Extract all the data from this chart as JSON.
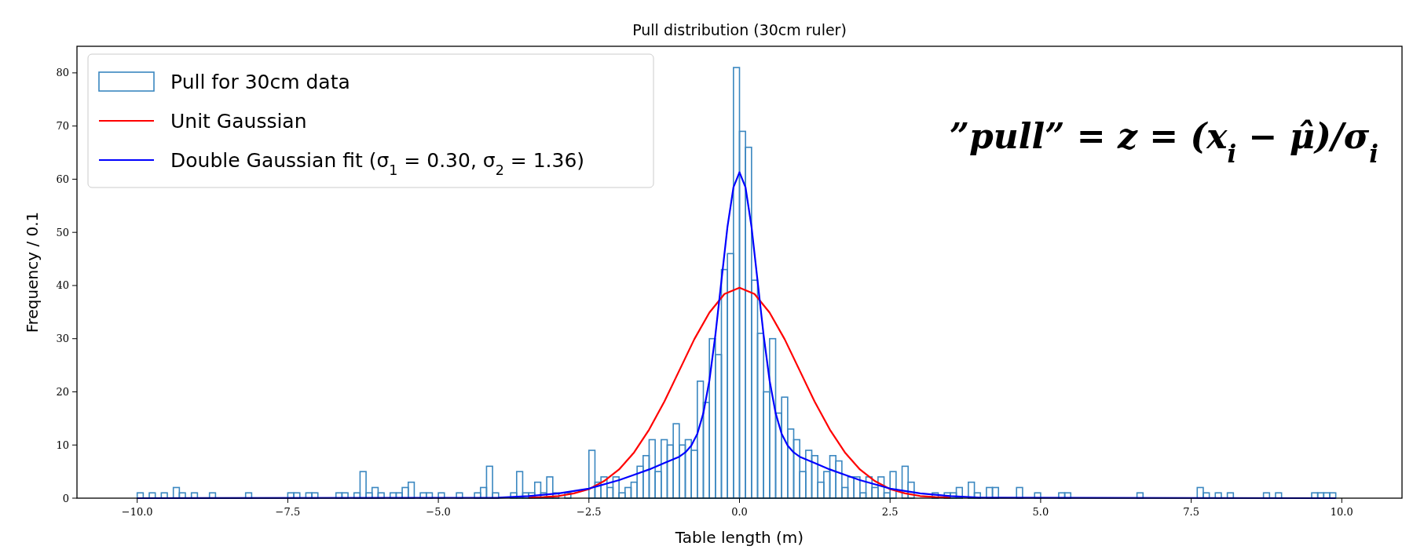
{
  "chart_data": {
    "type": "histogram",
    "title": "Pull distribution (30cm ruler)",
    "xlabel": "Table length (m)",
    "ylabel": "Frequency / 0.1",
    "annotations": [
      "”pull” = z = (x$_{i}$ − μ̂)/σ$_{i}$"
    ],
    "bins": [
      -10,
      -9.9,
      -9.8,
      -9.7,
      -9.6,
      -9.5,
      -9.4,
      -9.3,
      -9.2,
      -9.1,
      -9,
      -8.9,
      -8.8,
      -8.7,
      -8.6,
      -8.5,
      -8.4,
      -8.3,
      -8.2,
      -8.1,
      -8,
      -7.9,
      -7.8,
      -7.7,
      -7.6,
      -7.5,
      -7.4,
      -7.3,
      -7.2,
      -7.1,
      -7,
      -6.9,
      -6.8,
      -6.7,
      -6.6,
      -6.5,
      -6.4,
      -6.3,
      -6.2,
      -6.1,
      -6,
      -5.9,
      -5.8,
      -5.7,
      -5.6,
      -5.5,
      -5.4,
      -5.3,
      -5.2,
      -5.1,
      -5,
      -4.9,
      -4.8,
      -4.7,
      -4.6,
      -4.5,
      -4.4,
      -4.3,
      -4.2,
      -4.1,
      -4,
      -3.9,
      -3.8,
      -3.7,
      -3.6,
      -3.5,
      -3.4,
      -3.3,
      -3.2,
      -3.1,
      -3,
      -2.9,
      -2.8,
      -2.7,
      -2.6,
      -2.5,
      -2.4,
      -2.3,
      -2.2,
      -2.1,
      -2,
      -1.9,
      -1.8,
      -1.7,
      -1.6,
      -1.5,
      -1.4,
      -1.3,
      -1.2,
      -1.1,
      -1,
      -0.9,
      -0.8,
      -0.7,
      -0.6,
      -0.5,
      -0.4,
      -0.3,
      -0.2,
      -0.1,
      0,
      0.1,
      0.2,
      0.3,
      0.4,
      0.5,
      0.6,
      0.7,
      0.8,
      0.9,
      1,
      1.1,
      1.2,
      1.3,
      1.4,
      1.5,
      1.6,
      1.7,
      1.8,
      1.9,
      2,
      2.1,
      2.2,
      2.3,
      2.4,
      2.5,
      2.6,
      2.7,
      2.8,
      2.9,
      3,
      3.1,
      3.2,
      3.3,
      3.4,
      3.5,
      3.6,
      3.7,
      3.8,
      3.9,
      4,
      4.1,
      4.2,
      4.3,
      4.4,
      4.5,
      4.6,
      4.7,
      4.8,
      4.9,
      5,
      5.1,
      5.2,
      5.3,
      5.4,
      5.5,
      5.6,
      5.7,
      5.8,
      5.9,
      6,
      6.1,
      6.2,
      6.3,
      6.4,
      6.5,
      6.6,
      6.7,
      6.8,
      6.9,
      7,
      7.1,
      7.2,
      7.3,
      7.4,
      7.5,
      7.6,
      7.7,
      7.8,
      7.9,
      8,
      8.1,
      8.2,
      8.3,
      8.4,
      8.5,
      8.6,
      8.7,
      8.8,
      8.9,
      9,
      9.1,
      9.2,
      9.3,
      9.4,
      9.5,
      9.6,
      9.7,
      9.8,
      9.9,
      10
    ],
    "series": [
      {
        "name": "Pull for 30cm data",
        "color": "#3a87c0",
        "values": [
          1,
          0,
          1,
          0,
          1,
          0,
          2,
          1,
          0,
          1,
          0,
          0,
          1,
          0,
          0,
          0,
          0,
          0,
          1,
          0,
          0,
          0,
          0,
          0,
          0,
          1,
          1,
          0,
          1,
          1,
          0,
          0,
          0,
          1,
          1,
          0,
          1,
          5,
          1,
          2,
          1,
          0,
          1,
          1,
          2,
          3,
          0,
          1,
          1,
          0,
          1,
          0,
          0,
          1,
          0,
          0,
          1,
          2,
          6,
          1,
          0,
          0,
          1,
          5,
          1,
          1,
          3,
          1,
          4,
          1,
          0,
          1,
          0,
          0,
          0,
          9,
          3,
          4,
          2,
          4,
          1,
          2,
          3,
          6,
          8,
          11,
          5,
          11,
          10,
          14,
          10,
          11,
          9,
          22,
          18,
          30,
          27,
          43,
          46,
          81,
          69,
          66,
          41,
          31,
          20,
          30,
          16,
          19,
          13,
          11,
          5,
          9,
          8,
          3,
          5,
          8,
          7,
          2,
          4,
          4,
          1,
          4,
          2,
          4,
          1,
          5,
          0,
          6,
          3,
          0,
          0,
          0,
          1,
          0,
          1,
          1,
          2,
          0,
          3,
          1,
          0,
          2,
          2,
          0,
          0,
          0,
          2,
          0,
          0,
          1,
          0,
          0,
          0,
          1,
          1,
          0,
          0,
          0,
          0,
          0,
          0,
          0,
          0,
          0,
          0,
          0,
          1,
          0,
          0,
          0,
          0,
          0,
          0,
          0,
          0,
          0,
          2,
          1,
          0,
          1,
          0,
          1,
          0,
          0,
          0,
          0,
          0,
          1,
          0,
          1,
          0,
          0,
          0,
          0,
          0,
          1,
          1,
          1,
          1,
          0
        ]
      },
      {
        "type": "line",
        "name": "Unit Gaussian",
        "color": "#ff0000",
        "x": [
          -3.5,
          -3.25,
          -3,
          -2.75,
          -2.5,
          -2.25,
          -2,
          -1.75,
          -1.5,
          -1.25,
          -1,
          -0.75,
          -0.5,
          -0.25,
          0,
          0.25,
          0.5,
          0.75,
          1,
          1.25,
          1.5,
          1.75,
          2,
          2.25,
          2.5,
          2.75,
          3,
          3.25,
          3.5
        ],
        "values": [
          0.1,
          0.2,
          0.4,
          0.9,
          1.7,
          3.2,
          5.4,
          8.6,
          12.9,
          18.1,
          24,
          29.9,
          34.9,
          38.4,
          39.6,
          38.4,
          34.9,
          29.9,
          24,
          18.1,
          12.9,
          8.6,
          5.4,
          3.2,
          1.7,
          0.9,
          0.4,
          0.2,
          0.1
        ]
      },
      {
        "type": "line",
        "name": "Double Gaussian fit (σ$_{1}$ = 0.30, σ$_{2}$ = 1.36)",
        "color": "#0000ff",
        "x": [
          -10,
          -4,
          -3.5,
          -3,
          -2.5,
          -2,
          -1.75,
          -1.5,
          -1.25,
          -1,
          -0.9,
          -0.8,
          -0.7,
          -0.6,
          -0.5,
          -0.4,
          -0.3,
          -0.2,
          -0.1,
          0,
          0.1,
          0.2,
          0.3,
          0.4,
          0.5,
          0.6,
          0.7,
          0.8,
          0.9,
          1,
          1.25,
          1.5,
          1.75,
          2,
          2.5,
          3,
          3.5,
          4,
          9.9
        ],
        "values": [
          0,
          0.1,
          0.4,
          0.9,
          1.8,
          3.4,
          4.4,
          5.4,
          6.6,
          7.8,
          8.6,
          9.9,
          12.1,
          16,
          22.1,
          30.7,
          40.9,
          51,
          58.5,
          61.3,
          58.5,
          51,
          40.9,
          30.7,
          22.1,
          16,
          12.1,
          9.9,
          8.6,
          7.8,
          6.6,
          5.4,
          4.4,
          3.4,
          1.8,
          0.9,
          0.4,
          0.1,
          0
        ]
      }
    ],
    "xlim": [
      -11,
      11
    ],
    "ylim": [
      0,
      85
    ],
    "xticks": [
      {
        "value": -10,
        "label": "−10.0"
      },
      {
        "value": -7.5,
        "label": "−7.5"
      },
      {
        "value": -5,
        "label": "−5.0"
      },
      {
        "value": -2.5,
        "label": "−2.5"
      },
      {
        "value": 0,
        "label": "0.0"
      },
      {
        "value": 2.5,
        "label": "2.5"
      },
      {
        "value": 5,
        "label": "5.0"
      },
      {
        "value": 7.5,
        "label": "7.5"
      },
      {
        "value": 10,
        "label": "10.0"
      }
    ],
    "yticks": [
      0,
      10,
      20,
      30,
      40,
      50,
      60,
      70,
      80
    ],
    "grid": false,
    "legend": "top left"
  }
}
